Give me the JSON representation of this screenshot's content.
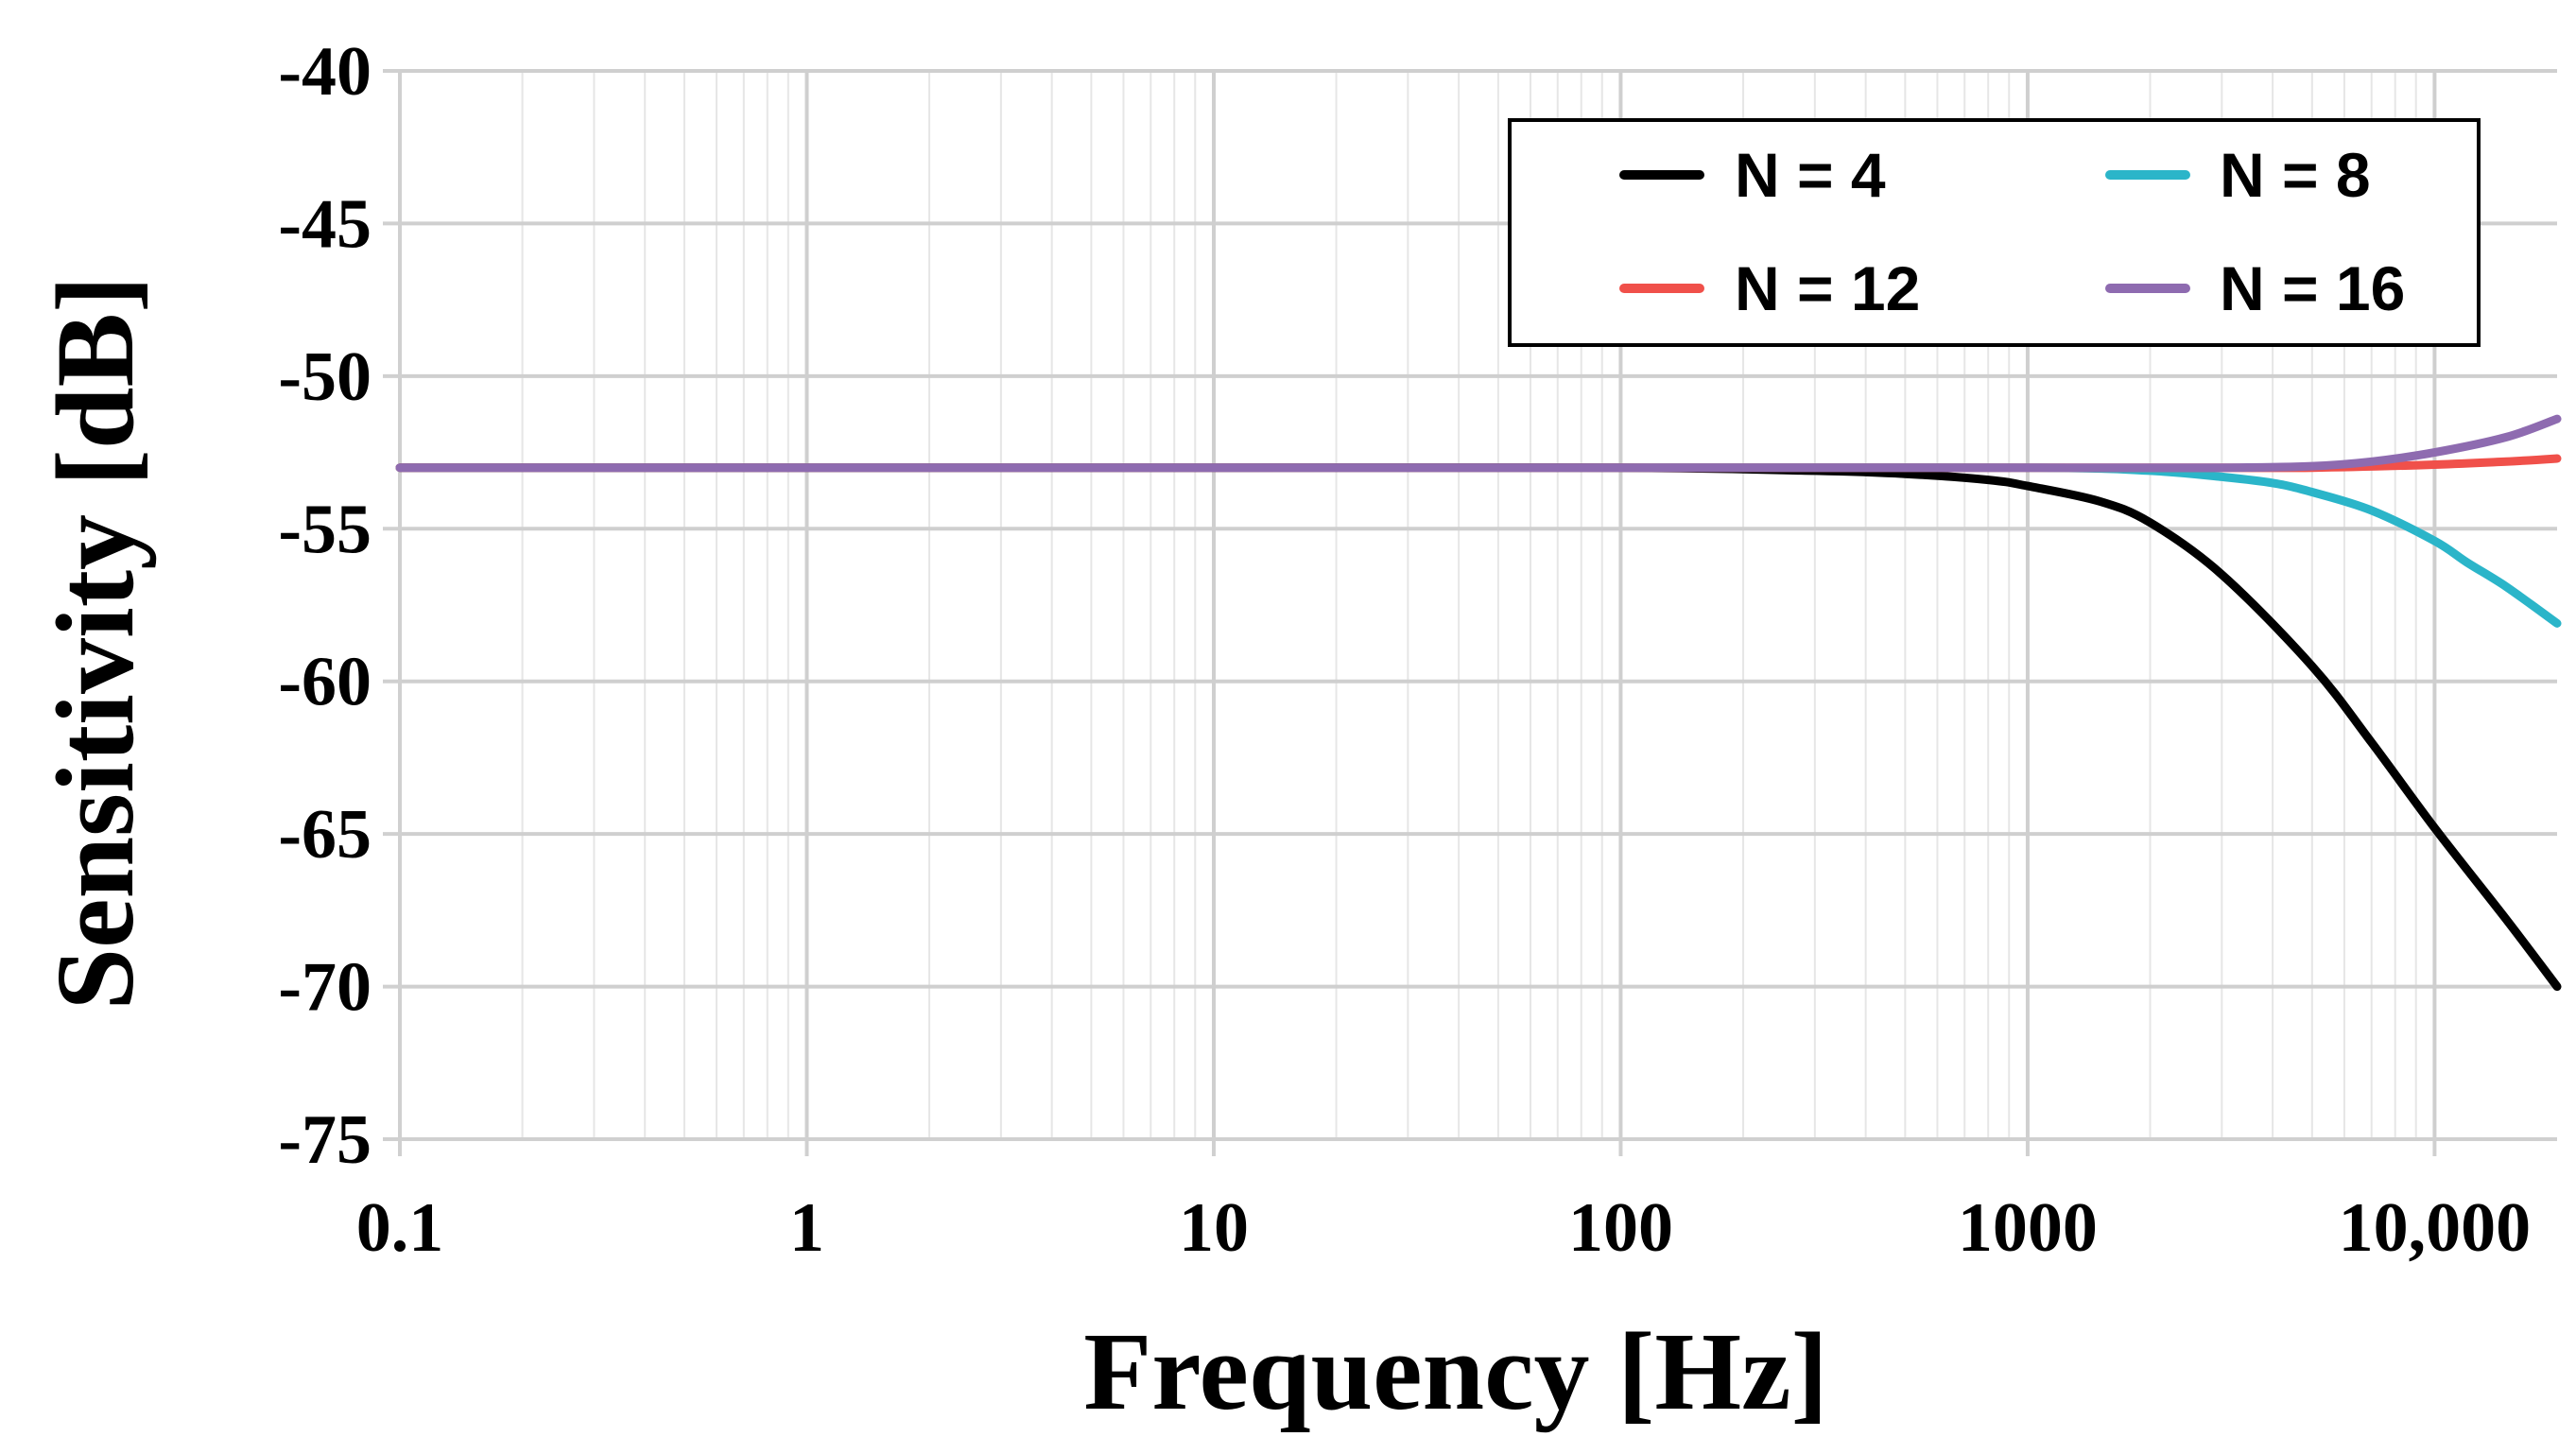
{
  "chart_data": {
    "type": "line",
    "title": "",
    "xlabel": "Frequency [Hz]",
    "ylabel": "Sensitivity [dB]",
    "xscale": "log",
    "xlim": [
      0.1,
      20000
    ],
    "ylim": [
      -75,
      -40
    ],
    "grid": true,
    "legend_position": "top-right",
    "x_ticks": [
      0.1,
      1,
      10,
      100,
      1000,
      10000
    ],
    "x_tick_labels": [
      "0.1",
      "1",
      "10",
      "100",
      "1000",
      "10,000"
    ],
    "y_ticks": [
      -40,
      -45,
      -50,
      -55,
      -60,
      -65,
      -70,
      -75
    ],
    "y_tick_labels": [
      "-40",
      "-45",
      "-50",
      "-55",
      "-60",
      "-65",
      "-70",
      "-75"
    ],
    "series": [
      {
        "name": "N = 4",
        "color": "#000000",
        "x": [
          0.1,
          1,
          10,
          100,
          300,
          500,
          800,
          1000,
          1500,
          2000,
          3000,
          5000,
          7000,
          10000,
          15000,
          20000
        ],
        "y": [
          -53,
          -53,
          -53,
          -53,
          -53.1,
          -53.2,
          -53.4,
          -53.6,
          -54.1,
          -54.8,
          -56.5,
          -59.5,
          -62,
          -64.8,
          -67.8,
          -70
        ]
      },
      {
        "name": "N = 8",
        "color": "#2BB5C9",
        "x": [
          0.1,
          1,
          10,
          100,
          1000,
          2000,
          3000,
          4000,
          5000,
          7000,
          10000,
          12000,
          15000,
          20000
        ],
        "y": [
          -53,
          -53,
          -53,
          -53,
          -53,
          -53.1,
          -53.3,
          -53.5,
          -53.8,
          -54.4,
          -55.4,
          -56.1,
          -56.9,
          -58.1
        ]
      },
      {
        "name": "N = 12",
        "color": "#F0504A",
        "x": [
          0.1,
          1,
          10,
          100,
          1000,
          3000,
          5000,
          10000,
          15000,
          20000
        ],
        "y": [
          -53,
          -53,
          -53,
          -53,
          -53,
          -53,
          -53,
          -52.9,
          -52.8,
          -52.7
        ]
      },
      {
        "name": "N = 16",
        "color": "#8E6BB0",
        "x": [
          0.1,
          1,
          10,
          100,
          1000,
          3000,
          5000,
          7000,
          10000,
          15000,
          20000
        ],
        "y": [
          -53,
          -53,
          -53,
          -53,
          -53,
          -53,
          -52.95,
          -52.8,
          -52.5,
          -52,
          -51.4
        ]
      }
    ]
  }
}
